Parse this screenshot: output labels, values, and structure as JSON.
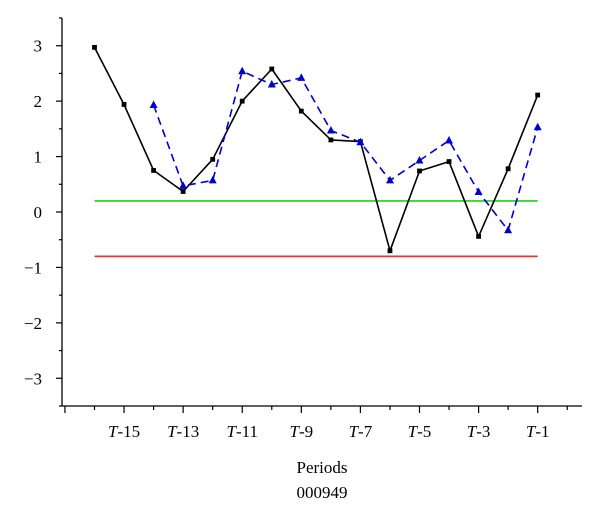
{
  "chart_data": {
    "type": "line",
    "title": "",
    "xlabel": "Periods",
    "ylabel": "",
    "caption": "000949",
    "ylim": [
      -3.5,
      3.5
    ],
    "yticks": [
      3,
      2,
      1,
      0,
      -1,
      -2,
      -3
    ],
    "ytick_labels": [
      "3",
      "2",
      "1",
      "0",
      "−1",
      "−2",
      "−3"
    ],
    "x": [
      -16,
      -15,
      -14,
      -13,
      -12,
      -11,
      -10,
      -9,
      -8,
      -7,
      -6,
      -5,
      -4,
      -3,
      -2,
      -1
    ],
    "xlim": [
      -17.1,
      0.5
    ],
    "xtick_labels": [
      {
        "x": -15,
        "t": "T",
        "n": "-15"
      },
      {
        "x": -13,
        "t": "T",
        "n": "-13"
      },
      {
        "x": -11,
        "t": "T",
        "n": "-11"
      },
      {
        "x": -9,
        "t": "T",
        "n": "-9"
      },
      {
        "x": -7,
        "t": "T",
        "n": "-7"
      },
      {
        "x": -5,
        "t": "T",
        "n": "-5"
      },
      {
        "x": -3,
        "t": "T",
        "n": "-3"
      },
      {
        "x": -1,
        "t": "T",
        "n": "-1"
      }
    ],
    "series": [
      {
        "style": "solid",
        "color": "#000000",
        "marker": "square",
        "values": [
          2.97,
          1.94,
          0.75,
          0.37,
          0.95,
          2.0,
          2.58,
          1.82,
          1.3,
          1.27,
          -0.7,
          0.74,
          0.91,
          -0.44,
          0.78,
          2.11
        ]
      },
      {
        "style": "dashed",
        "color": "#0000cc",
        "marker": "triangle",
        "values": [
          null,
          null,
          1.93,
          0.47,
          0.57,
          2.54,
          2.3,
          2.42,
          1.47,
          1.26,
          0.57,
          0.93,
          1.29,
          0.36,
          -0.33,
          1.53
        ]
      }
    ],
    "hlines": [
      {
        "y": 0.2,
        "color": "#33dd33"
      },
      {
        "y": -0.8,
        "color": "#ee3333"
      }
    ]
  }
}
